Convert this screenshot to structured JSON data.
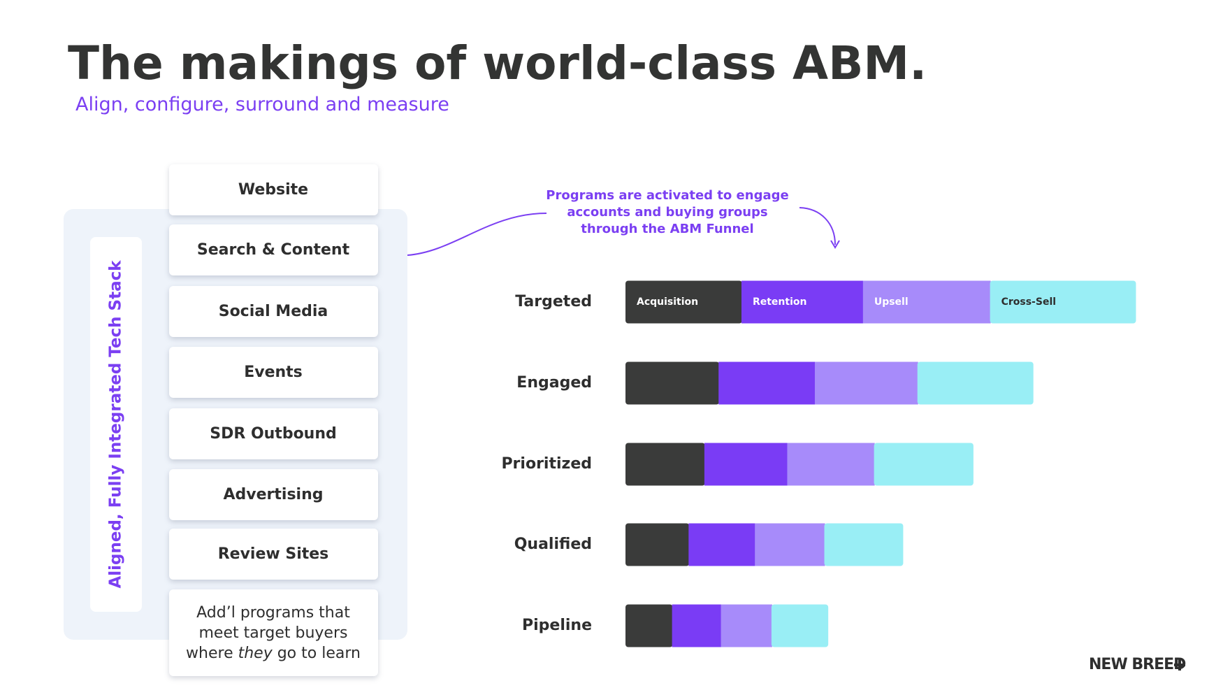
{
  "header": {
    "title": "The makings of world-class ABM.",
    "subtitle": "Align, configure, surround and measure"
  },
  "stack": {
    "label": "Aligned, Fully Integrated Tech Stack",
    "programs": [
      "Website",
      "Search & Content",
      "Social Media",
      "Events",
      "SDR Outbound",
      "Advertising",
      "Review Sites"
    ],
    "extra": {
      "lines": [
        "Add’l programs that",
        "meet target buyers"
      ],
      "last": [
        "where ",
        "they",
        " go to learn"
      ]
    }
  },
  "chart_data": {
    "type": "bar",
    "orientation": "horizontal",
    "stacked": true,
    "annotation": [
      "Programs are activated to engage",
      "accounts and buying groups",
      "through the ABM Funnel"
    ],
    "categories": [
      "Targeted",
      "Engaged",
      "Prioritized",
      "Qualified",
      "Pipeline"
    ],
    "series": [
      {
        "name": "Acquisition",
        "color": "#3a3b3a",
        "values": [
          147,
          118,
          100,
          80,
          59
        ]
      },
      {
        "name": "Retention",
        "color": "#7a3cf5",
        "values": [
          154,
          122,
          105,
          84,
          62
        ]
      },
      {
        "name": "Upsell",
        "color": "#a78bfa",
        "values": [
          161,
          130,
          110,
          88,
          64
        ]
      },
      {
        "name": "Cross-Sell",
        "color": "#99eef5",
        "values": [
          185,
          147,
          126,
          100,
          72
        ]
      }
    ]
  },
  "brand": "NEW BREED"
}
